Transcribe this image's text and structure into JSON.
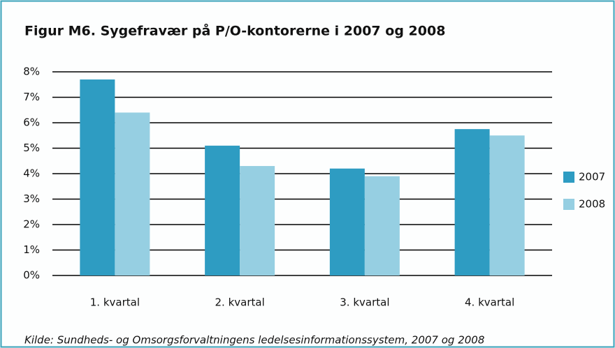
{
  "chart_data": {
    "type": "bar",
    "title": "Figur M6. Sygefravær på P/O-kontorerne i 2007 og 2008",
    "source": "Kilde: Sundheds- og Omsorgsforvaltningens ledelsesinformationssystem, 2007 og 2008",
    "categories": [
      "1. kvartal",
      "2. kvartal",
      "3. kvartal",
      "4. kvartal"
    ],
    "series": [
      {
        "name": "2007",
        "color": "#2e9cc2",
        "values": [
          7.7,
          5.1,
          4.2,
          5.75
        ]
      },
      {
        "name": "2008",
        "color": "#96cfe2",
        "values": [
          6.4,
          4.3,
          3.9,
          5.5
        ]
      }
    ],
    "ylim": [
      0,
      8
    ],
    "yticks": [
      {
        "value": 0,
        "label": "0%"
      },
      {
        "value": 1,
        "label": "1%"
      },
      {
        "value": 2,
        "label": "2%"
      },
      {
        "value": 3,
        "label": "3%"
      },
      {
        "value": 4,
        "label": "4%"
      },
      {
        "value": 5,
        "label": "5%"
      },
      {
        "value": 6,
        "label": "6%"
      },
      {
        "value": 7,
        "label": "7%"
      },
      {
        "value": 8,
        "label": "8%"
      }
    ],
    "grid": true,
    "legend": "right"
  }
}
